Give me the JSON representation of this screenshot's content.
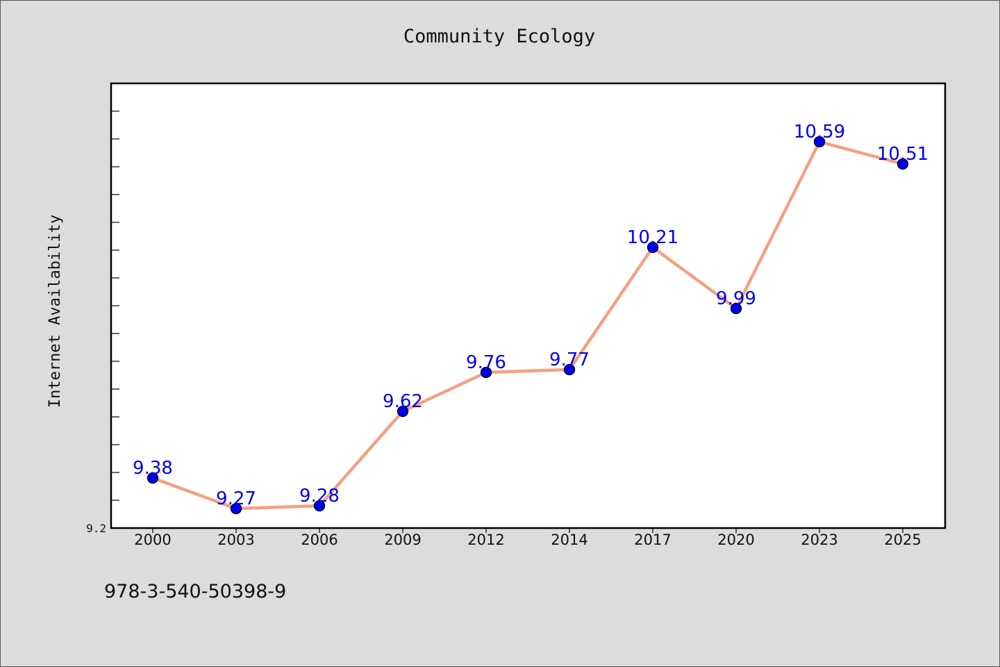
{
  "chart_data": {
    "type": "line",
    "title": "Community Ecology",
    "xlabel": "",
    "ylabel": "Internet Availability",
    "categories": [
      "2000",
      "2003",
      "2006",
      "2009",
      "2012",
      "2014",
      "2017",
      "2020",
      "2023",
      "2025"
    ],
    "series": [
      {
        "values": [
          9.38,
          9.27,
          9.28,
          9.62,
          9.76,
          9.77,
          10.21,
          9.99,
          10.59,
          10.51
        ]
      }
    ],
    "ylim": [
      9.2,
      10.8
    ],
    "y_tick_step": 0.1,
    "y_tick_labels": [
      "9.2"
    ],
    "grid": false,
    "legend": "none",
    "data_labels": true,
    "colors": {
      "line": "#f4a07f",
      "marker": "#0000ee",
      "label": "#0000ee",
      "plot_background": "#ffffff",
      "figure_background": "#dcdcdc"
    }
  },
  "footer": {
    "code": "978-3-540-50398-9"
  }
}
